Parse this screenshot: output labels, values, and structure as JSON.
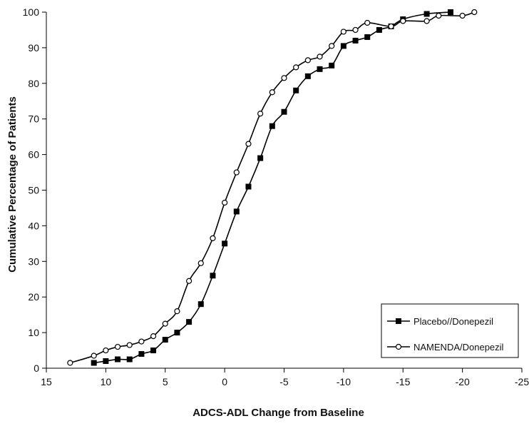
{
  "chart_data": {
    "type": "line",
    "xlabel": "ADCS-ADL Change from Baseline",
    "ylabel": "Cumulative Percentage of Patients",
    "xlim": [
      15,
      -25
    ],
    "ylim": [
      0,
      100
    ],
    "x_ticks": [
      15,
      10,
      5,
      0,
      -5,
      -10,
      -15,
      -20,
      -25
    ],
    "y_ticks": [
      0,
      10,
      20,
      30,
      40,
      50,
      60,
      70,
      80,
      90,
      100
    ],
    "x_reversed": true,
    "grid": false,
    "legend_position": "bottom-right",
    "series": [
      {
        "name": "Placebo//Donepezil",
        "marker": "filled-square",
        "color": "#000000",
        "x": [
          11,
          10,
          9,
          8,
          7,
          6,
          5,
          4,
          3,
          2,
          1,
          0,
          -1,
          -2,
          -3,
          -4,
          -5,
          -6,
          -7,
          -8,
          -9,
          -10,
          -11,
          -12,
          -13,
          -14,
          -15,
          -17,
          -19
        ],
        "y": [
          1.5,
          2,
          2.5,
          2.5,
          4,
          5,
          8,
          10,
          13,
          18,
          26,
          35,
          44,
          51,
          59,
          68,
          72,
          78,
          82,
          84,
          85,
          90.5,
          92,
          93,
          95,
          96,
          98,
          99.5,
          100
        ]
      },
      {
        "name": "NAMENDA/Donepezil",
        "marker": "open-circle",
        "color": "#000000",
        "x": [
          13,
          11,
          10,
          9,
          8,
          7,
          6,
          5,
          4,
          3,
          2,
          1,
          0,
          -1,
          -2,
          -3,
          -4,
          -5,
          -6,
          -7,
          -8,
          -9,
          -10,
          -11,
          -12,
          -14,
          -15,
          -17,
          -18,
          -20,
          -21
        ],
        "y": [
          1.5,
          3.5,
          5,
          6,
          6.5,
          7.5,
          9,
          12.5,
          16,
          24.5,
          29.5,
          36.5,
          46.5,
          55,
          63,
          71.5,
          77.5,
          81.5,
          84.5,
          86.5,
          87.5,
          90.5,
          94.5,
          95,
          97,
          96,
          97.5,
          97.5,
          99,
          99,
          100
        ]
      }
    ]
  }
}
